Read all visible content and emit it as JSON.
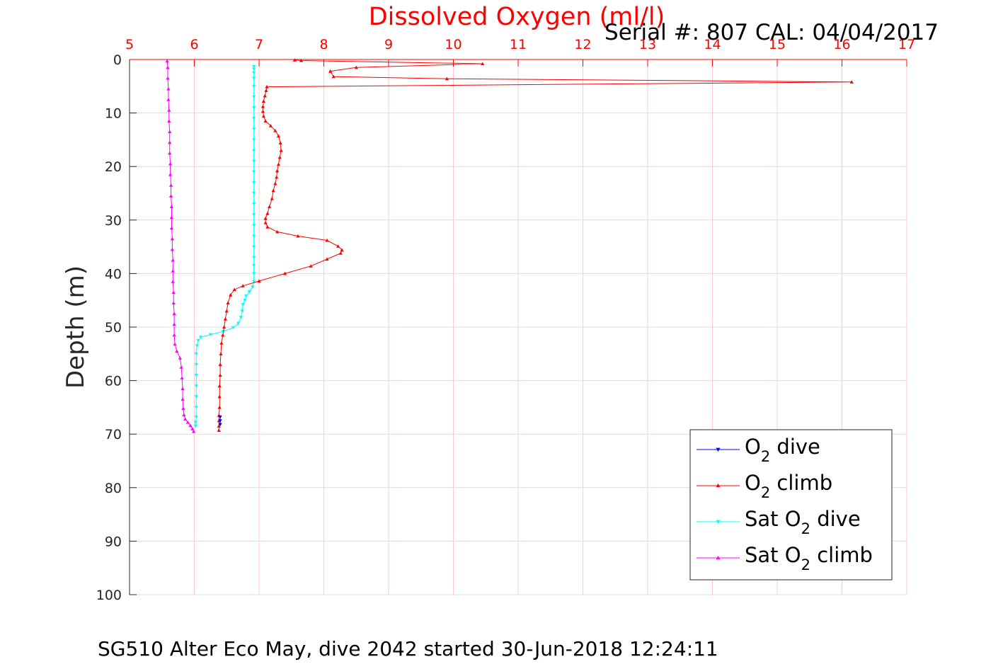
{
  "title": "Dissolved Oxygen (ml/l)",
  "serial_info": "Serial #: 807  CAL: 04/04/2017",
  "footer": "SG510 Alter Eco May, dive 2042 started 30-Jun-2018 12:24:11",
  "chart_data": {
    "type": "line",
    "title": "Dissolved Oxygen (ml/l)",
    "xlabel": "",
    "ylabel": "Depth (m)",
    "xlim": [
      5,
      17
    ],
    "ylim": [
      0,
      100
    ],
    "y_reversed": true,
    "x_axis_position": "top",
    "grid": true,
    "legend_position": "bottom-right",
    "x_ticks": [
      5,
      6,
      7,
      8,
      9,
      10,
      11,
      12,
      13,
      14,
      15,
      16,
      17
    ],
    "y_ticks": [
      0,
      10,
      20,
      30,
      40,
      50,
      60,
      70,
      80,
      90,
      100
    ],
    "series": [
      {
        "name": "O2 dive",
        "label_parts": [
          "O",
          "2",
          " dive"
        ],
        "color": "#0000ff",
        "marker": "triangle-down",
        "points": [
          [
            6.4,
            66.8
          ],
          [
            6.4,
            67.5
          ],
          [
            6.4,
            68.2
          ]
        ]
      },
      {
        "name": "O2 climb",
        "label_parts": [
          "O",
          "2",
          " climb"
        ],
        "color": "#ff0000",
        "marker": "triangle-up",
        "points": [
          [
            6.38,
            69.3
          ],
          [
            6.38,
            68.5
          ],
          [
            6.38,
            67.5
          ],
          [
            6.38,
            66.5
          ],
          [
            6.39,
            65
          ],
          [
            6.39,
            63
          ],
          [
            6.39,
            61
          ],
          [
            6.4,
            59
          ],
          [
            6.4,
            57
          ],
          [
            6.41,
            55
          ],
          [
            6.42,
            53
          ],
          [
            6.44,
            51.5
          ],
          [
            6.46,
            50
          ],
          [
            6.48,
            48.5
          ],
          [
            6.5,
            47
          ],
          [
            6.52,
            45.5
          ],
          [
            6.56,
            44
          ],
          [
            6.62,
            43
          ],
          [
            6.75,
            42.3
          ],
          [
            7.0,
            41.4
          ],
          [
            7.4,
            40.0
          ],
          [
            7.8,
            38.6
          ],
          [
            8.05,
            37.3
          ],
          [
            8.26,
            36.2
          ],
          [
            8.28,
            35.6
          ],
          [
            8.22,
            34.9
          ],
          [
            8.05,
            33.8
          ],
          [
            7.6,
            33.0
          ],
          [
            7.28,
            32.2
          ],
          [
            7.13,
            31.3
          ],
          [
            7.1,
            30.5
          ],
          [
            7.1,
            29.7
          ],
          [
            7.13,
            28.8
          ],
          [
            7.16,
            27.5
          ],
          [
            7.2,
            26.0
          ],
          [
            7.22,
            24.5
          ],
          [
            7.25,
            23.2
          ],
          [
            7.27,
            22.0
          ],
          [
            7.28,
            20.8
          ],
          [
            7.3,
            19.6
          ],
          [
            7.32,
            18.3
          ],
          [
            7.34,
            17.0
          ],
          [
            7.33,
            15.6
          ],
          [
            7.3,
            14.3
          ],
          [
            7.25,
            13.3
          ],
          [
            7.18,
            12.4
          ],
          [
            7.1,
            11.5
          ],
          [
            7.07,
            10.6
          ],
          [
            7.06,
            9.7
          ],
          [
            7.06,
            8.8
          ],
          [
            7.07,
            7.8
          ],
          [
            7.09,
            6.8
          ],
          [
            7.11,
            5.8
          ],
          [
            7.12,
            5.1
          ],
          [
            16.15,
            4.2
          ],
          [
            9.9,
            3.6
          ],
          [
            8.15,
            3.2
          ],
          [
            8.1,
            2.2
          ],
          [
            8.5,
            1.5
          ],
          [
            10.45,
            0.8
          ],
          [
            7.65,
            0.2
          ],
          [
            7.55,
            0.1
          ]
        ]
      },
      {
        "name": "Sat O2 dive",
        "label_parts": [
          "Sat O",
          "2",
          " dive"
        ],
        "color": "#00ffff",
        "marker": "triangle-down",
        "points": [
          [
            6.92,
            1.3
          ],
          [
            6.92,
            1.8
          ],
          [
            6.92,
            2.5
          ],
          [
            6.92,
            3.5
          ],
          [
            6.92,
            5
          ],
          [
            6.92,
            7
          ],
          [
            6.92,
            9
          ],
          [
            6.92,
            11
          ],
          [
            6.92,
            13
          ],
          [
            6.92,
            15
          ],
          [
            6.92,
            17
          ],
          [
            6.92,
            19
          ],
          [
            6.92,
            21
          ],
          [
            6.92,
            23
          ],
          [
            6.92,
            25
          ],
          [
            6.92,
            27
          ],
          [
            6.92,
            29
          ],
          [
            6.92,
            31
          ],
          [
            6.92,
            33
          ],
          [
            6.92,
            35
          ],
          [
            6.92,
            37
          ],
          [
            6.92,
            38.5
          ],
          [
            6.92,
            40
          ],
          [
            6.92,
            41.5
          ],
          [
            6.9,
            42.5
          ],
          [
            6.85,
            43.4
          ],
          [
            6.8,
            44.2
          ],
          [
            6.78,
            45
          ],
          [
            6.75,
            45.8
          ],
          [
            6.74,
            47
          ],
          [
            6.72,
            48.2
          ],
          [
            6.68,
            49.3
          ],
          [
            6.6,
            50.1
          ],
          [
            6.45,
            50.8
          ],
          [
            6.25,
            51.4
          ],
          [
            6.1,
            51.9
          ],
          [
            6.06,
            52.5
          ],
          [
            6.04,
            53.5
          ],
          [
            6.03,
            55
          ],
          [
            6.03,
            57
          ],
          [
            6.03,
            59
          ],
          [
            6.03,
            61
          ],
          [
            6.03,
            63
          ],
          [
            6.03,
            65
          ],
          [
            6.03,
            66.8
          ],
          [
            6.02,
            67.8
          ],
          [
            6.02,
            68.5
          ]
        ]
      },
      {
        "name": "Sat O2 climb",
        "label_parts": [
          "Sat O",
          "2",
          " climb"
        ],
        "color": "#ff00ff",
        "marker": "triangle-up",
        "points": [
          [
            5.99,
            69.5
          ],
          [
            5.97,
            69.0
          ],
          [
            5.94,
            68.4
          ],
          [
            5.9,
            67.8
          ],
          [
            5.86,
            67.2
          ],
          [
            5.84,
            66.4
          ],
          [
            5.83,
            65.2
          ],
          [
            5.82,
            63.5
          ],
          [
            5.82,
            61.5
          ],
          [
            5.81,
            59.5
          ],
          [
            5.8,
            57.5
          ],
          [
            5.78,
            55.8
          ],
          [
            5.73,
            54.5
          ],
          [
            5.7,
            53.2
          ],
          [
            5.69,
            51.5
          ],
          [
            5.69,
            49.5
          ],
          [
            5.69,
            47.5
          ],
          [
            5.68,
            45.5
          ],
          [
            5.68,
            43.5
          ],
          [
            5.67,
            41.5
          ],
          [
            5.67,
            39.5
          ],
          [
            5.67,
            37.5
          ],
          [
            5.66,
            35.5
          ],
          [
            5.66,
            33.5
          ],
          [
            5.65,
            31.5
          ],
          [
            5.65,
            29.5
          ],
          [
            5.65,
            27.5
          ],
          [
            5.64,
            25.5
          ],
          [
            5.64,
            23.5
          ],
          [
            5.63,
            21.5
          ],
          [
            5.63,
            19.5
          ],
          [
            5.62,
            17.5
          ],
          [
            5.62,
            15.5
          ],
          [
            5.62,
            13.5
          ],
          [
            5.61,
            11.5
          ],
          [
            5.61,
            9.5
          ],
          [
            5.6,
            7.5
          ],
          [
            5.6,
            5.5
          ],
          [
            5.59,
            3.5
          ],
          [
            5.59,
            1.5
          ],
          [
            5.58,
            0.3
          ]
        ]
      }
    ]
  }
}
